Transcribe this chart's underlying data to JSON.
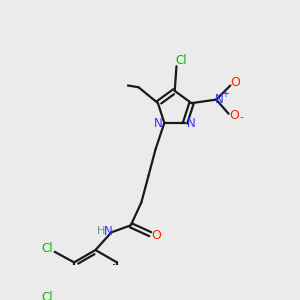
{
  "bg_color": "#ebebeb",
  "bond_color": "#1a1a1a",
  "N_color": "#3333ff",
  "O_color": "#ff2200",
  "Cl_color": "#00bb00",
  "H_color": "#6b8e8e",
  "figsize": [
    3.0,
    3.0
  ],
  "dpi": 100,
  "xlim": [
    0,
    300
  ],
  "ylim": [
    0,
    300
  ],
  "lw": 1.6
}
